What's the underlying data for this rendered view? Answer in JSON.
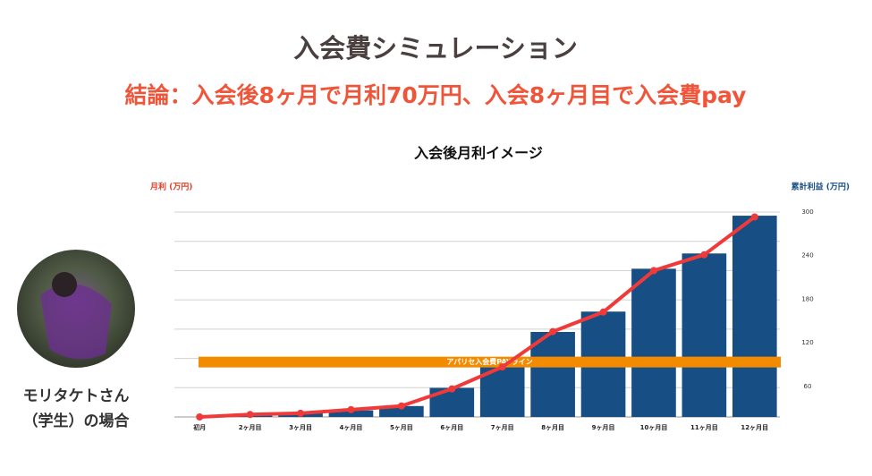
{
  "header": {
    "title": "入会費シミュレーション",
    "subtitle": "結論：入会後8ヶ月で月利70万円、入会8ヶ月目で入会費pay"
  },
  "profile": {
    "name": "モリタケトさん",
    "note": "（学生）の場合"
  },
  "chart_data": {
    "type": "bar-line",
    "title": "入会後月利イメージ",
    "y_label": "月利 (万円)",
    "y2_label": "累計利益 (万円)",
    "categories": [
      "初月",
      "2ヶ月目",
      "3ヶ月目",
      "4ヶ月目",
      "5ヶ月目",
      "6ヶ月目",
      "7ヶ月目",
      "8ヶ月目",
      "9ヶ月目",
      "10ヶ月目",
      "11ヶ月目",
      "12ヶ月目"
    ],
    "series": [
      {
        "name": "累計利益",
        "kind": "bar",
        "axis": "y2",
        "color": "#174f84",
        "values": [
          18,
          22,
          23,
          27,
          33,
          58,
          87,
          135,
          163,
          222,
          243,
          295
        ]
      },
      {
        "name": "月利",
        "kind": "line",
        "color": "#f03a3a",
        "values": [
          0,
          2,
          3,
          6,
          9,
          23,
          41,
          70,
          86,
          120,
          133,
          164
        ]
      }
    ],
    "ylim": [
      0,
      168
    ],
    "y2lim": [
      18,
      300
    ],
    "y2ticks": [
      60,
      120,
      180,
      240,
      300
    ],
    "reference_line": {
      "label": "アパリセ入会費PAYライン",
      "value": 45,
      "color": "#f38b00"
    },
    "grid": true
  }
}
